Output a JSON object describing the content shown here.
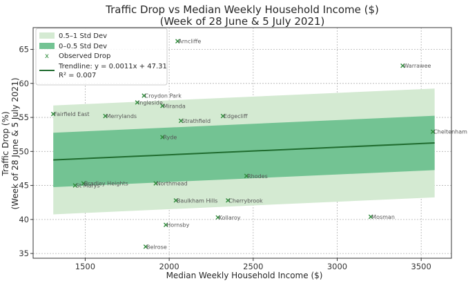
{
  "chart_data": {
    "type": "scatter",
    "title_line1": "Traffic Drop vs Median Weekly Household Income ($)",
    "title_line2": "(Week of 28 June & 5 July 2021)",
    "xlabel": "Median Weekly Household Income ($)",
    "ylabel_line1": "Traffic Drop (%)",
    "ylabel_line2": "(Week of 28 June & 5 July 2021)",
    "xlim": [
      1190,
      3680
    ],
    "ylim": [
      34.3,
      68.2
    ],
    "xticks": [
      1500,
      2000,
      2500,
      3000,
      3500
    ],
    "yticks": [
      35,
      40,
      45,
      50,
      55,
      60,
      65
    ],
    "grid": true,
    "legend_position": "top-left",
    "legend": {
      "band_outer": "0.5–1 Std Dev",
      "band_inner": "0–0.5 Std Dev",
      "observed": "Observed Drop",
      "trend_line1": "Trendline: y = 0.0011x + 47.31",
      "trend_line2": "R² = 0.007"
    },
    "trendline": {
      "slope": 0.0011,
      "intercept": 47.31,
      "x_start": 1310,
      "x_end": 3580,
      "r2": 0.007
    },
    "band_offsets": {
      "inner": 4,
      "outer": 8
    },
    "points": [
      {
        "label": "Arncliffe",
        "x": 2050,
        "y": 66.2
      },
      {
        "label": "Warrawee",
        "x": 3390,
        "y": 62.6
      },
      {
        "label": "Croydon Park",
        "x": 1850,
        "y": 58.2
      },
      {
        "label": "Ingleside",
        "x": 1810,
        "y": 57.2
      },
      {
        "label": "Miranda",
        "x": 1960,
        "y": 56.7
      },
      {
        "label": "Fairfield East",
        "x": 1310,
        "y": 55.5
      },
      {
        "label": "Merrylands",
        "x": 1620,
        "y": 55.2
      },
      {
        "label": "Edgecliff",
        "x": 2320,
        "y": 55.2
      },
      {
        "label": "Strathfield",
        "x": 2070,
        "y": 54.5
      },
      {
        "label": "Cheltenham",
        "x": 3570,
        "y": 52.9
      },
      {
        "label": "Ryde",
        "x": 1960,
        "y": 52.1
      },
      {
        "label": "Rhodes",
        "x": 2460,
        "y": 46.4
      },
      {
        "label": "Northmead",
        "x": 1920,
        "y": 45.3
      },
      {
        "label": "Bradley Heights",
        "x": 1490,
        "y": 45.3
      },
      {
        "label": "St Marys",
        "x": 1440,
        "y": 45.0
      },
      {
        "label": "Baulkham Hills",
        "x": 2040,
        "y": 42.8
      },
      {
        "label": "Cherrybrook",
        "x": 2350,
        "y": 42.8
      },
      {
        "label": "Kollaroy",
        "x": 2290,
        "y": 40.3
      },
      {
        "label": "Mosman",
        "x": 3200,
        "y": 40.4
      },
      {
        "label": "Hornsby",
        "x": 1980,
        "y": 39.2
      },
      {
        "label": "Belrose",
        "x": 1860,
        "y": 36.0
      }
    ],
    "colors": {
      "band_outer": "#d4ead2",
      "band_inner": "#73c393",
      "trend": "#1f6b2e",
      "marker": "#2e8b3a"
    }
  }
}
